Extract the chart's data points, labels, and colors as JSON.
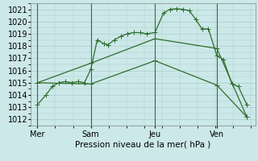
{
  "bg_color": "#cce8e8",
  "grid_color": "#aacccc",
  "line_color": "#2d6e2d",
  "title": "Pression niveau de la mer( hPa )",
  "ylim": [
    1011.5,
    1021.5
  ],
  "yticks": [
    1012,
    1013,
    1014,
    1015,
    1016,
    1017,
    1018,
    1019,
    1020,
    1021
  ],
  "xlim": [
    0,
    10.5
  ],
  "xtick_labels": [
    "Mer",
    "Sam",
    "Jeu",
    "Ven"
  ],
  "xtick_positions": [
    0.3,
    2.8,
    5.8,
    8.7
  ],
  "vline_positions": [
    0.3,
    2.8,
    5.8,
    8.7
  ],
  "line1_x": [
    0.3,
    0.7,
    1.0,
    1.3,
    1.6,
    1.9,
    2.2,
    2.5,
    2.8,
    3.1,
    3.4,
    3.6,
    3.9,
    4.2,
    4.5,
    4.8,
    5.1,
    5.4,
    5.8,
    6.2,
    6.5,
    6.8,
    7.1,
    7.4,
    7.7,
    8.0,
    8.3,
    8.7,
    9.0,
    9.4,
    9.7,
    10.1
  ],
  "line1_y": [
    1013.2,
    1014.0,
    1014.7,
    1015.0,
    1015.1,
    1015.0,
    1015.1,
    1015.0,
    1016.1,
    1018.5,
    1018.2,
    1018.1,
    1018.5,
    1018.8,
    1019.0,
    1019.1,
    1019.1,
    1019.0,
    1019.1,
    1020.7,
    1021.0,
    1021.05,
    1021.0,
    1020.9,
    1020.2,
    1019.4,
    1019.4,
    1017.2,
    1016.9,
    1014.9,
    1014.7,
    1013.2
  ],
  "line2_x": [
    0.3,
    2.8,
    5.8,
    8.7,
    10.1
  ],
  "line2_y": [
    1015.0,
    1016.6,
    1018.6,
    1017.8,
    1012.2
  ],
  "line3_x": [
    0.3,
    2.8,
    5.8,
    8.7,
    10.1
  ],
  "line3_y": [
    1015.0,
    1014.9,
    1016.8,
    1014.8,
    1012.2
  ],
  "marker": "+",
  "marker_size": 4,
  "line_width": 0.9
}
